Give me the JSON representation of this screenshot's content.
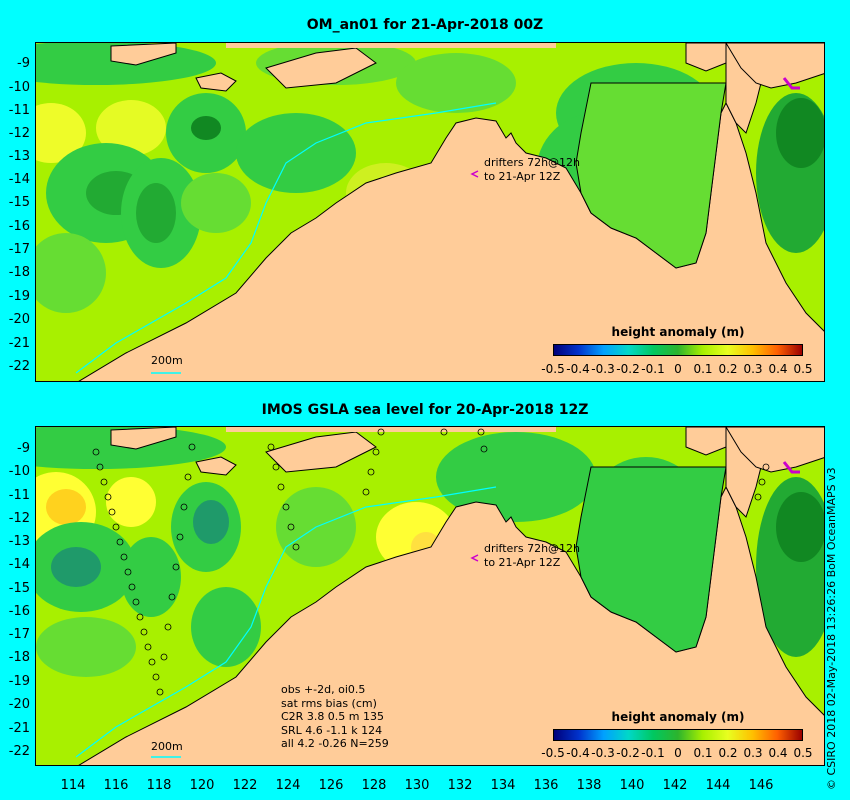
{
  "top_panel": {
    "title": "OM_an01 for 21-Apr-2018 00Z",
    "drifter_note_line1": "drifters 72h@12h",
    "drifter_note_line2": "to 21-Apr 12Z",
    "isobath_label": "200m",
    "colorbar_title": "height anomaly (m)"
  },
  "bottom_panel": {
    "title": "IMOS GSLA sea level  for 20-Apr-2018 12Z",
    "drifter_note_line1": "drifters 72h@12h",
    "drifter_note_line2": "to 21-Apr 12Z",
    "isobath_label": "200m",
    "colorbar_title": "height anomaly (m)",
    "stats": [
      "obs +-2d, oi0.5",
      "sat rms bias (cm)",
      "C2R   3.8  0.5  m 135",
      "SRL   4.6  -1.1  k 124",
      "all   4.2  -0.26  N=259"
    ]
  },
  "y_ticks": [
    "-9",
    "-10",
    "-11",
    "-12",
    "-13",
    "-14",
    "-15",
    "-16",
    "-17",
    "-18",
    "-19",
    "-20",
    "-21",
    "-22"
  ],
  "x_ticks": [
    "114",
    "116",
    "118",
    "120",
    "122",
    "124",
    "126",
    "128",
    "130",
    "132",
    "134",
    "136",
    "138",
    "140",
    "142",
    "144",
    "146"
  ],
  "colorbar_ticks": [
    "-0.5",
    "-0.4",
    "-0.3",
    "-0.2",
    "-0.1",
    "0",
    "0.1",
    "0.2",
    "0.3",
    "0.4",
    "0.5"
  ],
  "credit": "© CSIRO 2018  02-May-2018 13:26:26 BoM OceanMAPS v3",
  "colors": {
    "land": "#ffcc99",
    "ocean_base": "#a8f000",
    "isobath": "#00ffff",
    "frame_bg": "#00ffff",
    "drifter": "#cc00cc"
  }
}
